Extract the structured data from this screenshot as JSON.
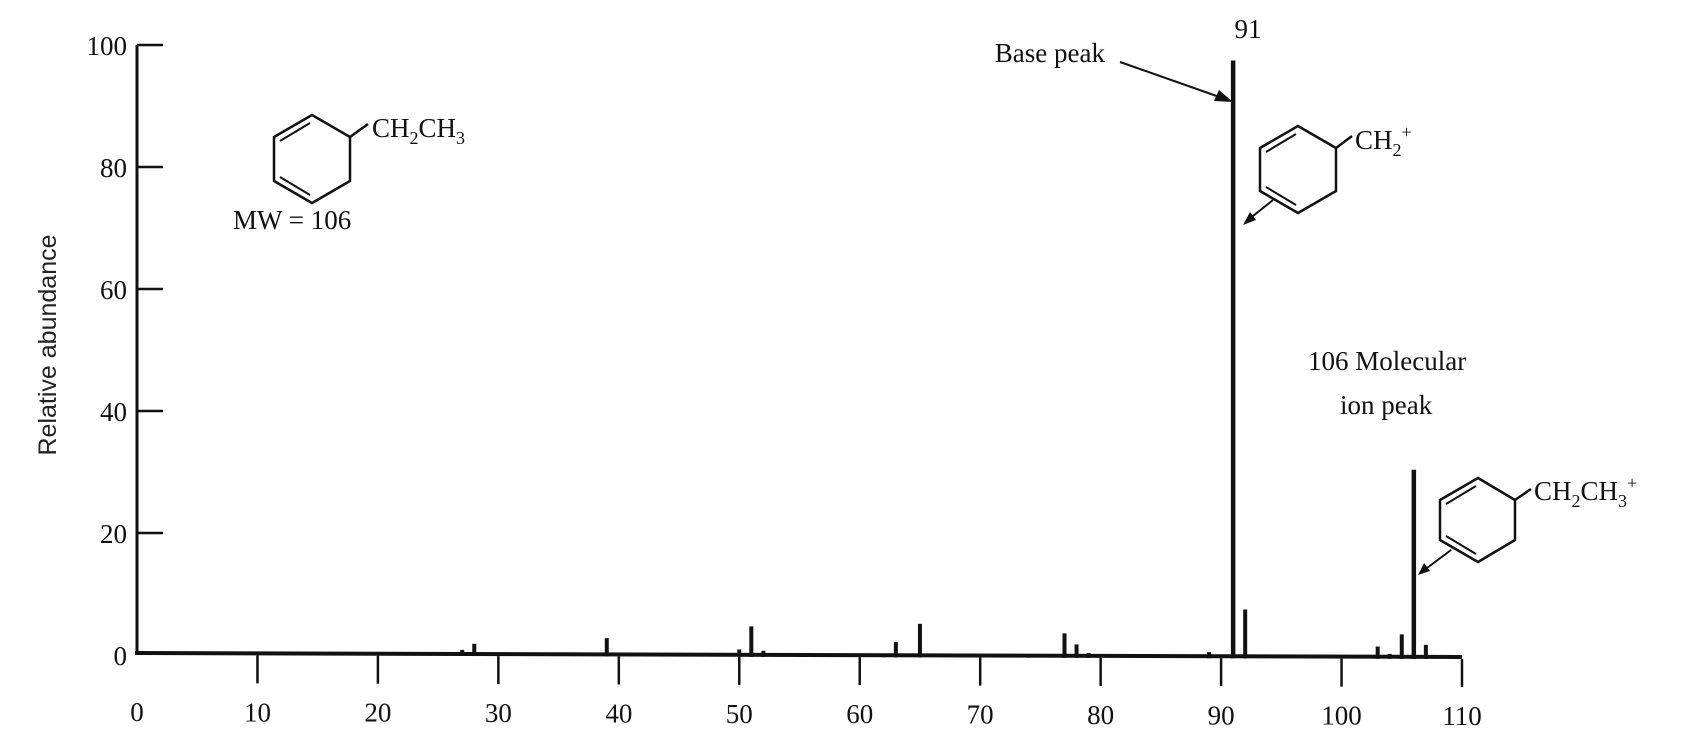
{
  "chart_data": {
    "type": "bar",
    "title": "",
    "xlabel": "",
    "ylabel": "Relative abundance",
    "xlim": [
      0,
      110
    ],
    "ylim": [
      0,
      100
    ],
    "grid": false,
    "x_ticks": [
      0,
      10,
      20,
      30,
      40,
      50,
      60,
      70,
      80,
      90,
      100,
      110
    ],
    "y_ticks": [
      0,
      20,
      40,
      60,
      80,
      100
    ],
    "peaks": [
      {
        "mz": 27,
        "abundance": 1
      },
      {
        "mz": 28,
        "abundance": 2
      },
      {
        "mz": 39,
        "abundance": 3
      },
      {
        "mz": 50,
        "abundance": 1.2
      },
      {
        "mz": 51,
        "abundance": 5
      },
      {
        "mz": 52,
        "abundance": 1
      },
      {
        "mz": 62,
        "abundance": 0.6
      },
      {
        "mz": 63,
        "abundance": 2.5
      },
      {
        "mz": 65,
        "abundance": 5.5
      },
      {
        "mz": 74,
        "abundance": 0.5
      },
      {
        "mz": 77,
        "abundance": 4
      },
      {
        "mz": 78,
        "abundance": 2.2
      },
      {
        "mz": 79,
        "abundance": 0.8
      },
      {
        "mz": 89,
        "abundance": 1
      },
      {
        "mz": 91,
        "abundance": 98
      },
      {
        "mz": 92,
        "abundance": 8
      },
      {
        "mz": 103,
        "abundance": 2
      },
      {
        "mz": 104,
        "abundance": 0.8
      },
      {
        "mz": 105,
        "abundance": 4
      },
      {
        "mz": 106,
        "abundance": 31
      },
      {
        "mz": 107,
        "abundance": 2.3
      }
    ],
    "annotations": [
      {
        "text": "91",
        "target_mz": 91
      },
      {
        "text": "Base peak",
        "target_mz": 91
      },
      {
        "text": "106 Molecular ion peak",
        "target_mz": 106
      }
    ]
  },
  "labels": {
    "ylabel": "Relative abundance",
    "peak_91": "91",
    "base_peak": "Base peak",
    "molecular_line1": "106 Molecular",
    "molecular_line2": "ion peak",
    "mw": "MW = 106"
  },
  "structures": {
    "parent": {
      "main": "CH",
      "sub1": "2",
      "main2": "CH",
      "sub2": "3",
      "charge": ""
    },
    "fragment_91": {
      "main": "CH",
      "sub1": "2",
      "charge": "+"
    },
    "fragment_106": {
      "main": "CH",
      "sub1": "2",
      "main2": "CH",
      "sub2": "3",
      "charge": "+"
    }
  },
  "colors": {
    "ink": "#111111",
    "background": "#ffffff"
  }
}
